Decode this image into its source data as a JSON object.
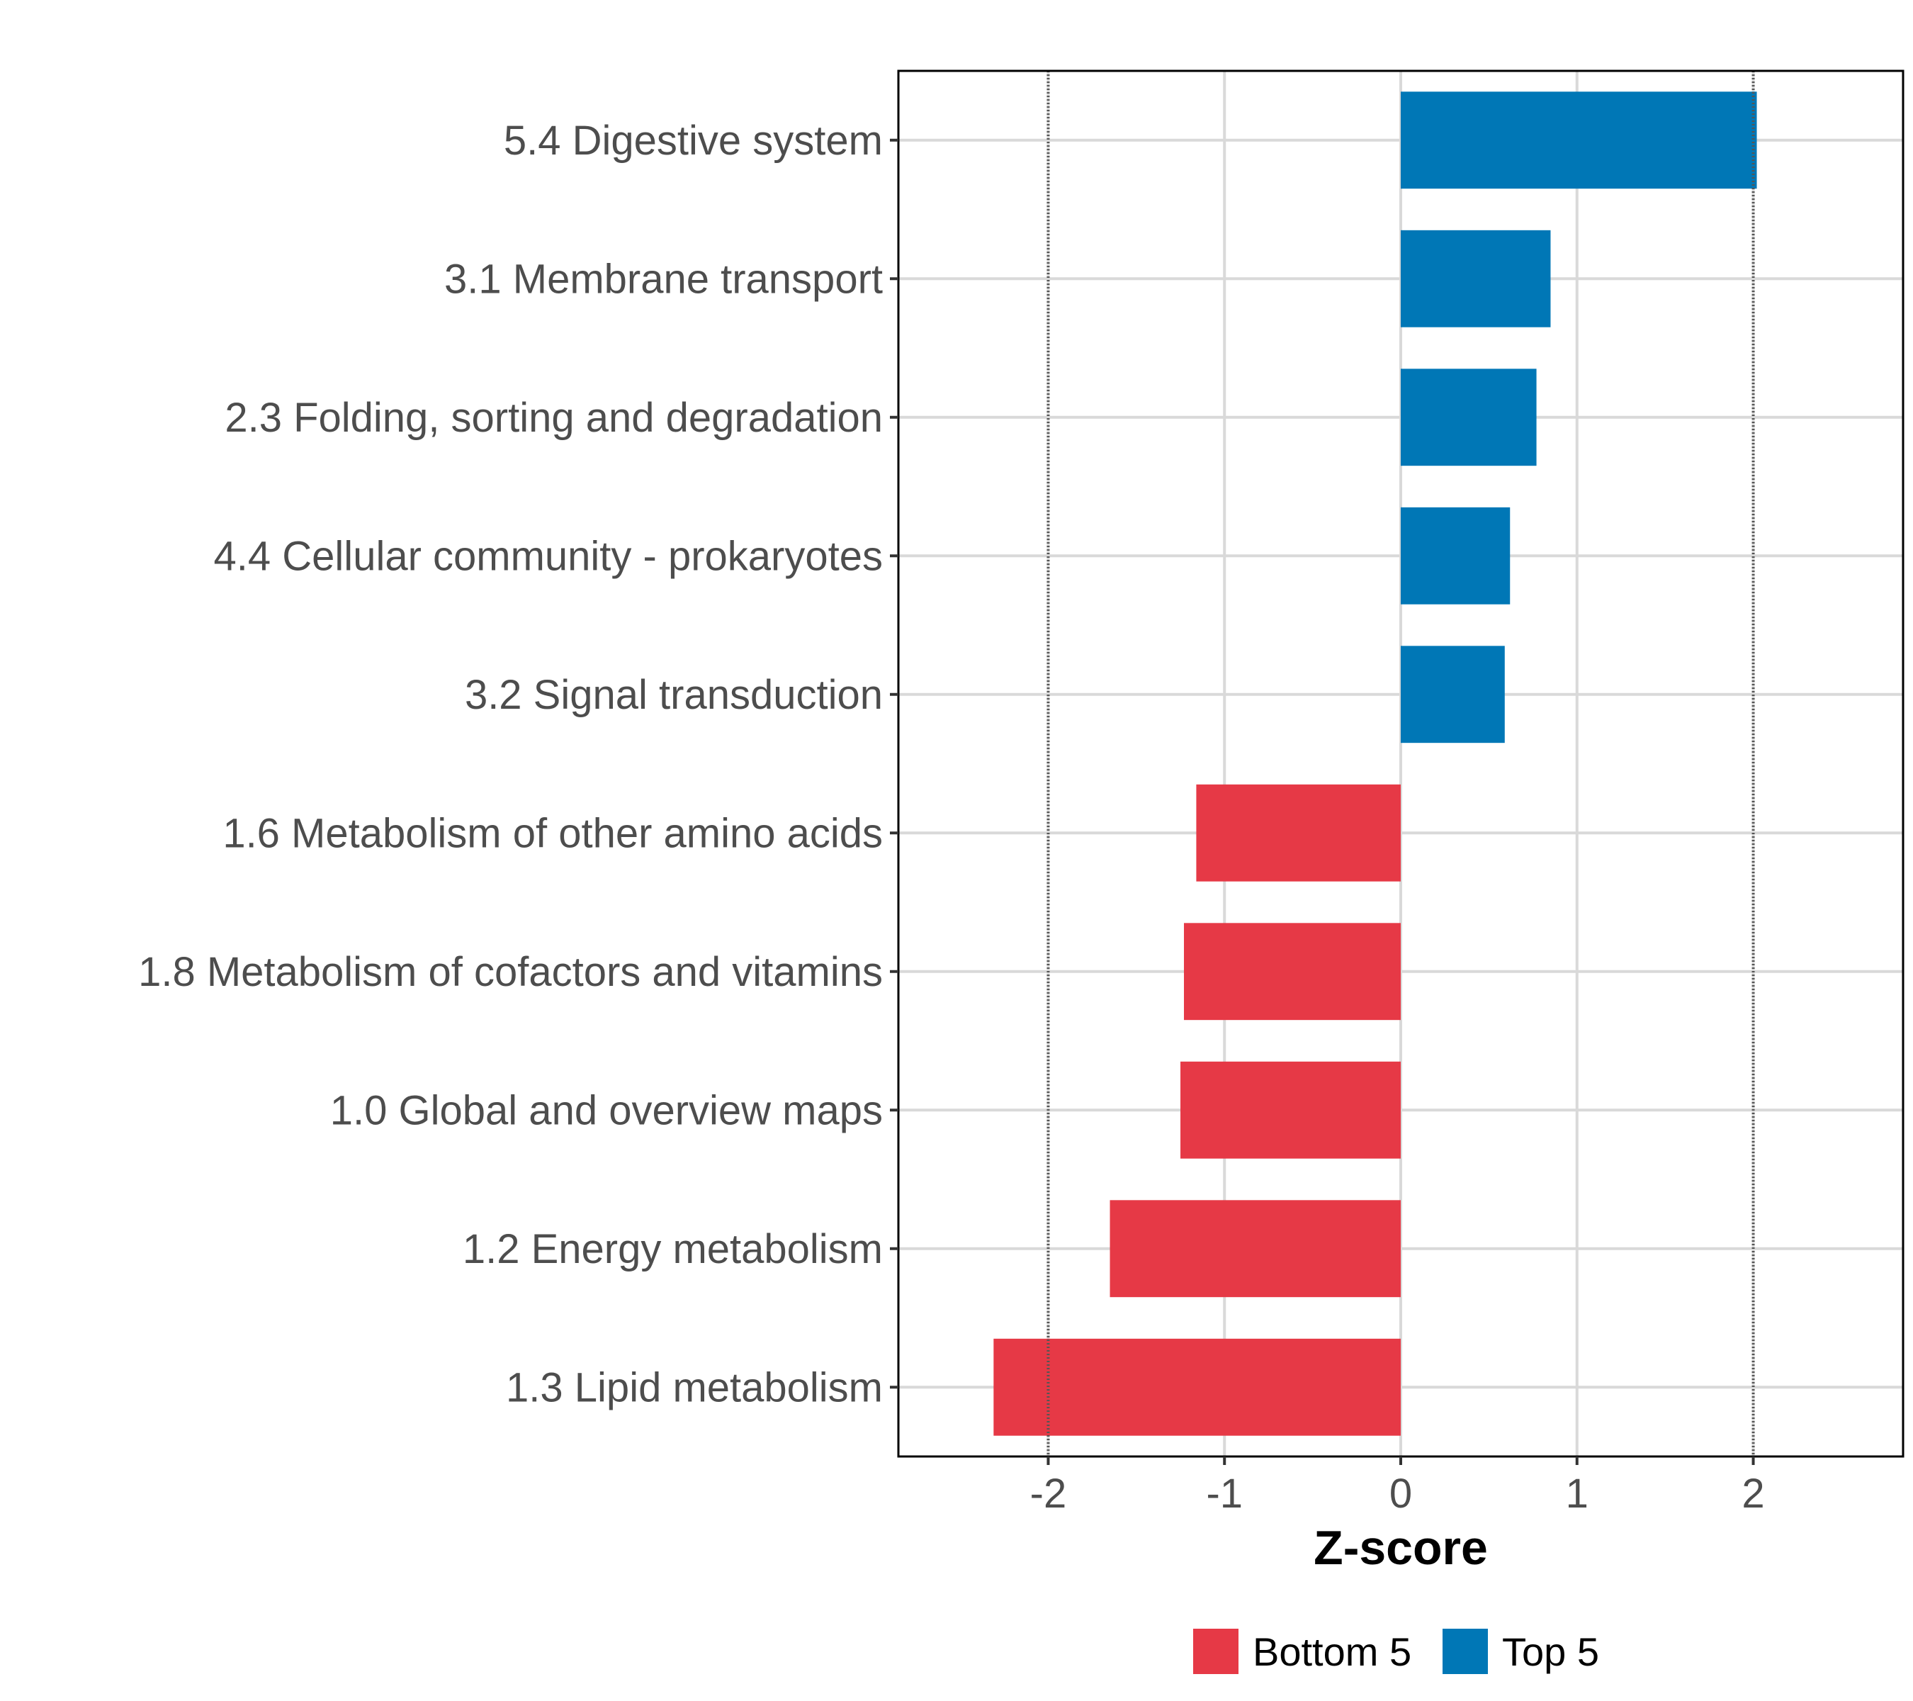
{
  "chart_data": {
    "type": "bar",
    "orientation": "horizontal",
    "title": "",
    "xlabel": "Z-score",
    "ylabel": "",
    "xlim": [
      -2.85,
      2.85
    ],
    "x_ticks": [
      -2,
      -1,
      0,
      1,
      2
    ],
    "x_tick_labels": [
      "-2",
      "-1",
      "0",
      "1",
      "2"
    ],
    "reference_lines": [
      -2,
      2
    ],
    "grid": true,
    "legend_position": "bottom",
    "categories": [
      "5.4 Digestive system",
      "3.1 Membrane transport",
      "2.3 Folding, sorting and degradation",
      "4.4 Cellular community - prokaryotes",
      "3.2 Signal transduction",
      "1.6 Metabolism of other amino acids",
      "1.8 Metabolism of cofactors and vitamins",
      "1.0 Global and overview maps",
      "1.2 Energy metabolism",
      "1.3 Lipid metabolism"
    ],
    "values": [
      2.02,
      0.85,
      0.77,
      0.62,
      0.59,
      -1.16,
      -1.23,
      -1.25,
      -1.65,
      -2.31
    ],
    "groups": [
      "Top 5",
      "Top 5",
      "Top 5",
      "Top 5",
      "Top 5",
      "Bottom 5",
      "Bottom 5",
      "Bottom 5",
      "Bottom 5",
      "Bottom 5"
    ],
    "legend": [
      {
        "name": "Bottom 5",
        "color": "#e63946"
      },
      {
        "name": "Top 5",
        "color": "#0077b6"
      }
    ]
  }
}
